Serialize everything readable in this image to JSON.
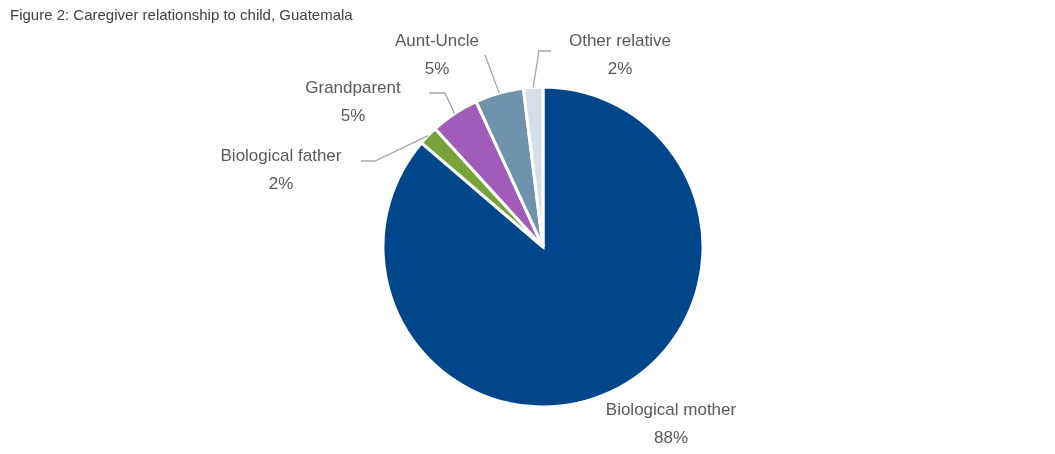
{
  "chart_data": {
    "type": "pie",
    "title": "Figure 2: Caregiver relationship to child, Guatemala",
    "categories": [
      "Biological mother",
      "Biological father",
      "Grandparent",
      "Aunt-Uncle",
      "Other relative"
    ],
    "values": [
      88,
      2,
      5,
      5,
      2
    ],
    "colors": [
      "#00468b",
      "#77a33a",
      "#a05cb8",
      "#6f93ad",
      "#d6dfe8"
    ],
    "value_labels": [
      "88%",
      "2%",
      "5%",
      "5%",
      "2%"
    ]
  }
}
